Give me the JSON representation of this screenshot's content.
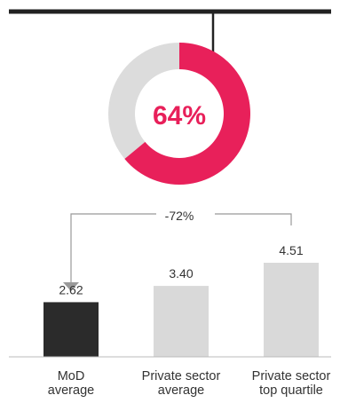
{
  "chart_data": [
    {
      "type": "pie",
      "style": "donut",
      "value_percent": 64,
      "center_label": "64%",
      "colors": {
        "value": "#e8205a",
        "remainder": "#dcdcdc",
        "label": "#e8205a"
      }
    },
    {
      "type": "bar",
      "categories": [
        [
          "MoD",
          "average"
        ],
        [
          "Private sector",
          "average"
        ],
        [
          "Private sector",
          "top quartile"
        ]
      ],
      "values": [
        2.62,
        3.4,
        4.51
      ],
      "value_labels": [
        "2.62",
        "3.40",
        "4.51"
      ],
      "comparison_label": "-72%",
      "colors": {
        "highlight": "#2b2b2b",
        "default": "#d9d9d9",
        "text": "#333333",
        "connector": "#999999"
      }
    }
  ],
  "decor": {
    "top_rule_color": "#222222"
  }
}
